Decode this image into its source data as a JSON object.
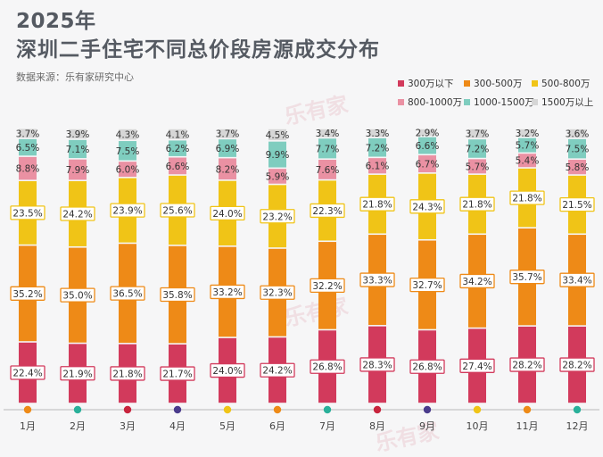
{
  "title": {
    "year": "2025年",
    "main": "深圳二手住宅不同总价段房源成交分布"
  },
  "source": "数据来源：乐有家研究中心",
  "watermark": "乐有家",
  "chart_data": {
    "type": "bar",
    "stacked": true,
    "title": "深圳二手住宅不同总价段房源成交分布",
    "legend_position": "top-right",
    "categories": [
      "1月",
      "2月",
      "3月",
      "4月",
      "5月",
      "6月",
      "7月",
      "8月",
      "9月",
      "10月",
      "11月",
      "12月"
    ],
    "series": [
      {
        "name": "300万以下",
        "color": "#d23a5c",
        "values": [
          22.4,
          21.9,
          21.8,
          21.7,
          24.0,
          24.2,
          26.8,
          28.3,
          26.8,
          27.4,
          28.2,
          28.2
        ]
      },
      {
        "name": "300-500万",
        "color": "#ee8a17",
        "values": [
          35.2,
          35.0,
          36.5,
          35.8,
          33.2,
          32.3,
          32.2,
          33.3,
          32.7,
          34.2,
          35.7,
          33.4
        ]
      },
      {
        "name": "500-800万",
        "color": "#f0c417",
        "values": [
          23.5,
          24.2,
          23.9,
          25.6,
          24.0,
          23.2,
          22.3,
          21.8,
          24.3,
          21.8,
          21.8,
          21.5
        ]
      },
      {
        "name": "800-1000万",
        "color": "#ea91a3",
        "values": [
          8.8,
          7.9,
          6.0,
          6.6,
          8.2,
          5.9,
          7.6,
          6.1,
          6.7,
          5.7,
          5.4,
          5.8
        ]
      },
      {
        "name": "1000-1500万",
        "color": "#7fcdbf",
        "values": [
          6.5,
          7.1,
          7.5,
          6.2,
          6.9,
          9.9,
          7.7,
          7.2,
          6.6,
          7.2,
          5.7,
          7.5
        ]
      },
      {
        "name": "1500万以上",
        "color": "#d6d6d6",
        "values": [
          3.7,
          3.9,
          4.3,
          4.1,
          3.7,
          4.5,
          3.4,
          3.3,
          2.9,
          3.7,
          3.2,
          3.6
        ]
      }
    ],
    "value_labels": [
      [
        "22.4%",
        "21.9%",
        "21.8%",
        "21.7%",
        "24.0%",
        "24.2%",
        "26.8%",
        "28.3%",
        "26.8%",
        "27.4%",
        "28.2%",
        "28.2%"
      ],
      [
        "35.2%",
        "35.0%",
        "36.5%",
        "35.8%",
        "33.2%",
        "32.3%",
        "32.2%",
        "33.3%",
        "32.7%",
        "34.2%",
        "35.7%",
        "33.4%"
      ],
      [
        "23.5%",
        "24.2%",
        "23.9%",
        "25.6%",
        "24.0%",
        "23.2%",
        "22.3%",
        "21.8%",
        "24.3%",
        "21.8%",
        "21.8%",
        "21.5%"
      ],
      [
        "8.8%",
        "7.9%",
        "6.0%",
        "6.6%",
        "8.2%",
        "5.9%",
        "7.6%",
        "6.1%",
        "6.7%",
        "5.7%",
        "5.4%",
        "5.8%"
      ],
      [
        "6.5%",
        "7.1%",
        "7.5%",
        "6.2%",
        "6.9%",
        "9.9%",
        "7.7%",
        "7.2%",
        "6.6%",
        "7.2%",
        "5.7%",
        "7.5%"
      ],
      [
        "3.7%",
        "3.9%",
        "4.3%",
        "4.1%",
        "3.7%",
        "4.5%",
        "3.4%",
        "3.3%",
        "2.9%",
        "3.7%",
        "3.2%",
        "3.6%"
      ]
    ],
    "month_dot_colors": [
      "#ee8a17",
      "#2ab09a",
      "#c8243d",
      "#4a3b8c",
      "#f0c417",
      "#ee8a17",
      "#2ab09a",
      "#c8243d",
      "#4a3b8c",
      "#f0c417",
      "#ee8a17",
      "#2ab09a"
    ],
    "axis_color": "#b8b8b8",
    "ylim": [
      0,
      100
    ]
  }
}
